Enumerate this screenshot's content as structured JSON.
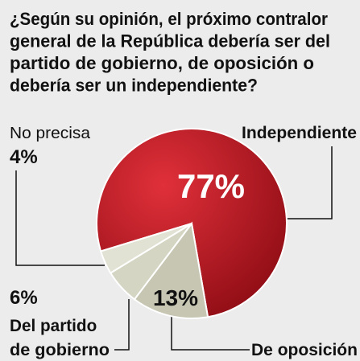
{
  "chart_data": {
    "type": "pie",
    "title": [
      "¿Según su opinión, el próximo contralor",
      "general de la República debería ser del",
      "partido de gobierno, de oposición o",
      "debería ser un independiente?"
    ],
    "categories": [
      "Independiente",
      "De oposición",
      "Del partido de gobierno",
      "No precisa"
    ],
    "values": [
      77,
      13,
      6,
      4
    ],
    "value_labels": [
      "77%",
      "13%",
      "6%",
      "4%"
    ],
    "colors": [
      "#c41a22",
      "#c6c6b3",
      "#d5d5c4",
      "#e2e2d4"
    ]
  }
}
